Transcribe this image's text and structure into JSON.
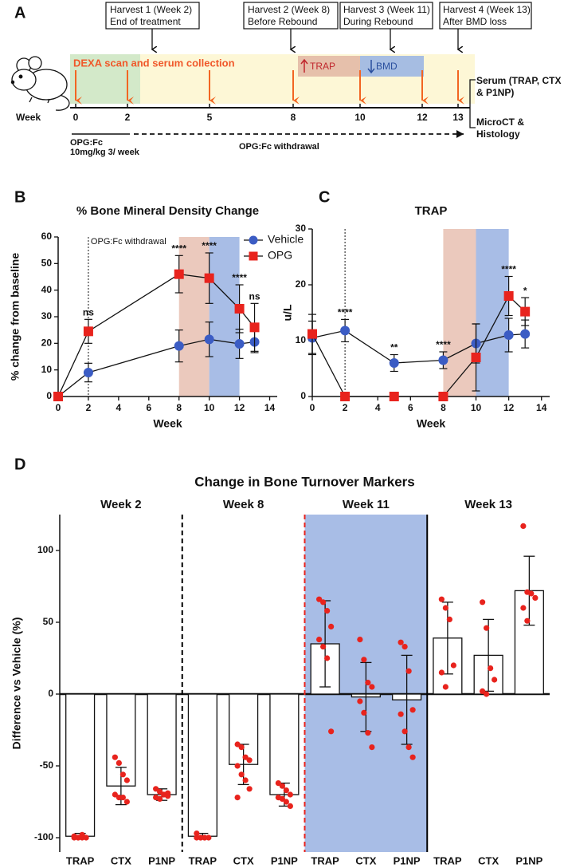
{
  "panel_a": {
    "label": "A",
    "harvests": [
      {
        "title": "Harvest 1 (Week 2)",
        "subtitle": "End of treatment"
      },
      {
        "title": "Harvest 2 (Week 8)",
        "subtitle": "Before Rebound"
      },
      {
        "title": "Harvest 3 (Week 11)",
        "subtitle": "During Rebound"
      },
      {
        "title": "Harvest 4 (Week 13)",
        "subtitle": "After BMD loss"
      }
    ],
    "collection": "DEXA scan and serum collection",
    "phases": [
      "TRAP",
      "BMD"
    ],
    "axis_label": "Week",
    "weeks": [
      "0",
      "2",
      "5",
      "8",
      "10",
      "12",
      "13"
    ],
    "outputs": [
      "Serum (TRAP, CTX & P1NP)",
      "MicroCT & Histology"
    ],
    "treatment": [
      "OPG:Fc",
      "10mg/kg 3/ week"
    ],
    "withdrawal": "OPG:Fc withdrawal"
  },
  "chart_data": [
    {
      "type": "line",
      "panel_label": "B",
      "title": "% Bone Mineral Density Change",
      "x_label": "Week",
      "y_label": "% change from baseline",
      "xlim": [
        0,
        14.5
      ],
      "xticks": [
        0,
        2,
        4,
        6,
        8,
        10,
        12,
        14
      ],
      "ylim": [
        0,
        60
      ],
      "yticks": [
        0,
        10,
        20,
        30,
        40,
        50,
        60
      ],
      "legend": "upper right",
      "vline": {
        "x": 2,
        "label": "OPG:Fc withdrawal"
      },
      "spans": [
        {
          "from": 8,
          "to": 10,
          "color": "#ebc9bd"
        },
        {
          "from": 10,
          "to": 12,
          "color": "#a8bde6"
        }
      ],
      "series": [
        {
          "name": "Vehicle",
          "color": "#3b5cc4",
          "marker": "circle",
          "x": [
            0,
            2,
            8,
            10,
            12,
            13
          ],
          "values": [
            0,
            9,
            19,
            21.5,
            19.8,
            20.5
          ],
          "errors": [
            0,
            3.5,
            6,
            6.5,
            5.5,
            4
          ]
        },
        {
          "name": "OPG",
          "color": "#e8231d",
          "marker": "square",
          "x": [
            0,
            2,
            8,
            10,
            12,
            13
          ],
          "values": [
            0,
            24.5,
            46,
            44.5,
            33,
            26
          ],
          "errors": [
            0,
            4.5,
            7,
            9.5,
            9,
            9
          ]
        }
      ],
      "annotations": [
        {
          "text": "ns",
          "x": 2
        },
        {
          "text": "****",
          "x": 8
        },
        {
          "text": "****",
          "x": 10
        },
        {
          "text": "****",
          "x": 12
        },
        {
          "text": "ns",
          "x": 13
        }
      ]
    },
    {
      "type": "line",
      "panel_label": "C",
      "title": "TRAP",
      "x_label": "Week",
      "y_label": "u/L",
      "xlim": [
        0,
        14.5
      ],
      "xticks": [
        0,
        2,
        4,
        6,
        8,
        10,
        12,
        14
      ],
      "ylim": [
        0,
        30
      ],
      "yticks": [
        0,
        10,
        20,
        30
      ],
      "vline": {
        "x": 2
      },
      "spans": [
        {
          "from": 8,
          "to": 10,
          "color": "#ebc9bd"
        },
        {
          "from": 10,
          "to": 12,
          "color": "#a8bde6"
        }
      ],
      "series": [
        {
          "color": "#3b5cc4",
          "marker": "circle",
          "x": [
            0,
            2,
            5,
            8,
            10,
            12,
            13
          ],
          "values": [
            10.5,
            11.8,
            6,
            6.5,
            9.5,
            11,
            11.2
          ],
          "errors": [
            3,
            2,
            1.5,
            1.5,
            3.5,
            3,
            2.5
          ]
        },
        {
          "color": "#e8231d",
          "marker": "square",
          "x": [
            0,
            2,
            5,
            8,
            10,
            12,
            13
          ],
          "values": [
            11.2,
            0,
            0,
            0,
            7,
            18,
            15.2
          ],
          "errors": [
            3.5,
            0,
            0,
            0,
            6,
            3.5,
            2.5
          ]
        }
      ],
      "annotations": [
        {
          "text": "****",
          "x": 2
        },
        {
          "text": "**",
          "x": 5
        },
        {
          "text": "****",
          "x": 8
        },
        {
          "text": "****",
          "x": 12
        },
        {
          "text": "*",
          "x": 13
        }
      ]
    },
    {
      "type": "grouped_bar",
      "panel_label": "D",
      "title": "Change in Bone Turnover Markers",
      "y_label": "Difference vs Vehicle (%)",
      "ylim": [
        -110,
        125
      ],
      "yticks": [
        -100,
        -50,
        0,
        50,
        100
      ],
      "bar_color": "#ffffff",
      "point_color": "#e8231d",
      "separators": [
        {
          "style": "dashed",
          "color": "#000000"
        },
        {
          "style": "dashed",
          "color": "#e8231d"
        },
        {
          "style": "solid",
          "color": "#000000"
        }
      ],
      "groups": [
        {
          "name": "Week 2",
          "categories": [
            "TRAP",
            "CTX",
            "P1NP"
          ],
          "values": [
            -99,
            -64,
            -70
          ],
          "errors": [
            2,
            13,
            4
          ],
          "points": [
            [
              -99,
              -100,
              -100,
              -100,
              -100,
              -100,
              -98
            ],
            [
              -44,
              -48,
              -56,
              -60,
              -70,
              -72,
              -72,
              -75
            ],
            [
              -66,
              -68,
              -70,
              -71,
              -72,
              -73,
              -70,
              -69
            ]
          ]
        },
        {
          "name": "Week 8",
          "categories": [
            "TRAP",
            "CTX",
            "P1NP"
          ],
          "values": [
            -99,
            -49,
            -70
          ],
          "errors": [
            2,
            14,
            8
          ],
          "points": [
            [
              -97,
              -100,
              -100,
              -100,
              -100,
              -100,
              -100
            ],
            [
              -35,
              -37,
              -44,
              -46,
              -50,
              -56,
              -60,
              -66,
              -72
            ],
            [
              -62,
              -64,
              -67,
              -70,
              -72,
              -73,
              -75,
              -78
            ]
          ]
        },
        {
          "name": "Week 11",
          "background": "#a8bde6",
          "categories": [
            "TRAP",
            "CTX",
            "P1NP"
          ],
          "values": [
            35,
            -2,
            -4
          ],
          "errors": [
            30,
            24,
            31
          ],
          "points": [
            [
              66,
              64,
              58,
              47,
              38,
              33,
              25,
              -26
            ],
            [
              38,
              24,
              8,
              5,
              -5,
              -13,
              -27,
              -37
            ],
            [
              36,
              33,
              16,
              -11,
              -14,
              -26,
              -37,
              -44
            ]
          ]
        },
        {
          "name": "Week 13",
          "categories": [
            "TRAP",
            "CTX",
            "P1NP"
          ],
          "values": [
            39,
            27,
            72
          ],
          "errors": [
            25,
            25,
            24
          ],
          "points": [
            [
              66,
              60,
              52,
              20,
              15,
              5
            ],
            [
              64,
              46,
              18,
              10,
              2,
              0
            ],
            [
              117,
              71,
              70,
              67,
              60,
              51
            ]
          ]
        }
      ]
    }
  ]
}
